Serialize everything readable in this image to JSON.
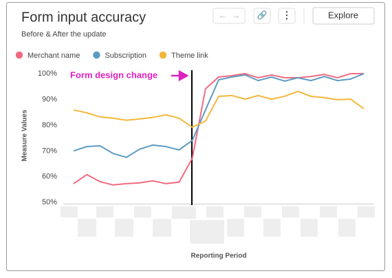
{
  "header": {
    "title": "Form input accuracy",
    "subtitle": "Before & After the update",
    "explore": "Explore"
  },
  "chart_data": {
    "type": "line",
    "y_label": "Measure Values",
    "x_label": "Reporting Period",
    "annotation": "Form design change",
    "categories": [
      null,
      null,
      null,
      null,
      null,
      null,
      null,
      null,
      null,
      null,
      null,
      null,
      null,
      null,
      null,
      null,
      null,
      null,
      null,
      null,
      null,
      null,
      null
    ],
    "series": [
      {
        "name": "Merchant name",
        "color": "#f06a80",
        "values": [
          57.3,
          60.8,
          58.1,
          56.8,
          57.3,
          57.6,
          58.4,
          57.3,
          57.9,
          67.2,
          94.1,
          98.7,
          99.2,
          100,
          98.4,
          99.5,
          98.4,
          98.4,
          98.9,
          99.7,
          98.4,
          100,
          100
        ]
      },
      {
        "name": "Subscription",
        "color": "#5b9bc4",
        "values": [
          70,
          71.7,
          72,
          69,
          67.5,
          70.7,
          72.3,
          71.7,
          70.4,
          74.1,
          85.9,
          97.6,
          98.7,
          99.5,
          97.3,
          98.7,
          97.1,
          98.4,
          97.3,
          98.9,
          97.3,
          97.9,
          100
        ]
      },
      {
        "name": "Theme link",
        "color": "#f4b63a",
        "values": [
          85.9,
          84.8,
          83.2,
          82.7,
          81.9,
          82.4,
          83,
          84,
          82.7,
          79.2,
          81.6,
          91.2,
          91.5,
          90.1,
          91.5,
          90.1,
          91.2,
          93.1,
          91.2,
          90.7,
          89.9,
          90.1,
          86.4
        ]
      }
    ],
    "ylim": [
      49,
      101.5
    ],
    "yticks": [
      {
        "value": 50,
        "label": "50%"
      },
      {
        "value": 60,
        "label": "60%"
      },
      {
        "value": 70,
        "label": "70%"
      },
      {
        "value": 80,
        "label": "80%"
      },
      {
        "value": 90,
        "label": "90%"
      },
      {
        "value": 100,
        "label": "100%"
      }
    ],
    "grid": false
  }
}
